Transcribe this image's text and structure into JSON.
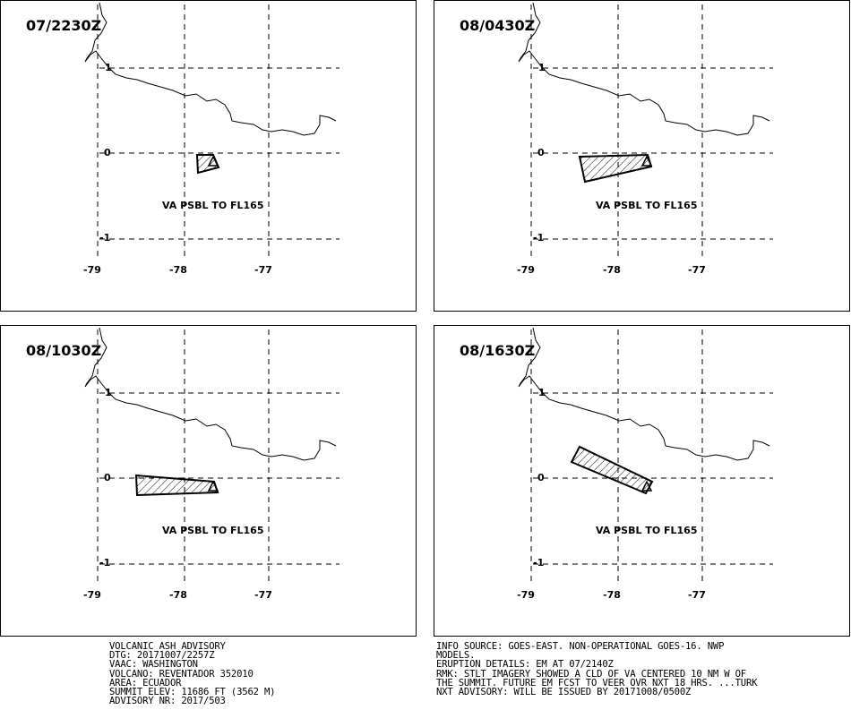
{
  "panels": [
    {
      "title": "07/2230Z",
      "label": "VA PSBL TO FL165"
    },
    {
      "title": "08/0430Z",
      "label": "VA PSBL TO FL165"
    },
    {
      "title": "08/1030Z",
      "label": "VA PSBL TO FL165"
    },
    {
      "title": "08/1630Z",
      "label": "VA PSBL TO FL165"
    }
  ],
  "axis": {
    "lat_ticks": [
      "1",
      "0",
      "-1"
    ],
    "lon_ticks": [
      "-79",
      "-78",
      "-77"
    ]
  },
  "advisory_left": [
    "VOLCANIC ASH ADVISORY",
    "DTG: 20171007/2257Z",
    "VAAC: WASHINGTON",
    "VOLCANO: REVENTADOR 352010",
    "AREA: ECUADOR",
    "SUMMIT ELEV: 11686 FT (3562 M)",
    "ADVISORY NR: 2017/503"
  ],
  "advisory_right": [
    "INFO SOURCE: GOES-EAST. NON-OPERATIONAL GOES-16. NWP",
    "MODELS.",
    "ERUPTION DETAILS: EM AT 07/2140Z",
    "RMK: STLT IMAGERY SHOWED A CLD OF VA CENTERED 10 NM W OF",
    "THE SUMMIT. FUTURE EM FCST TO VEER OVR NXT 18 HRS. ...TURK",
    "NXT ADVISORY: WILL BE ISSUED BY 20171008/0500Z"
  ]
}
